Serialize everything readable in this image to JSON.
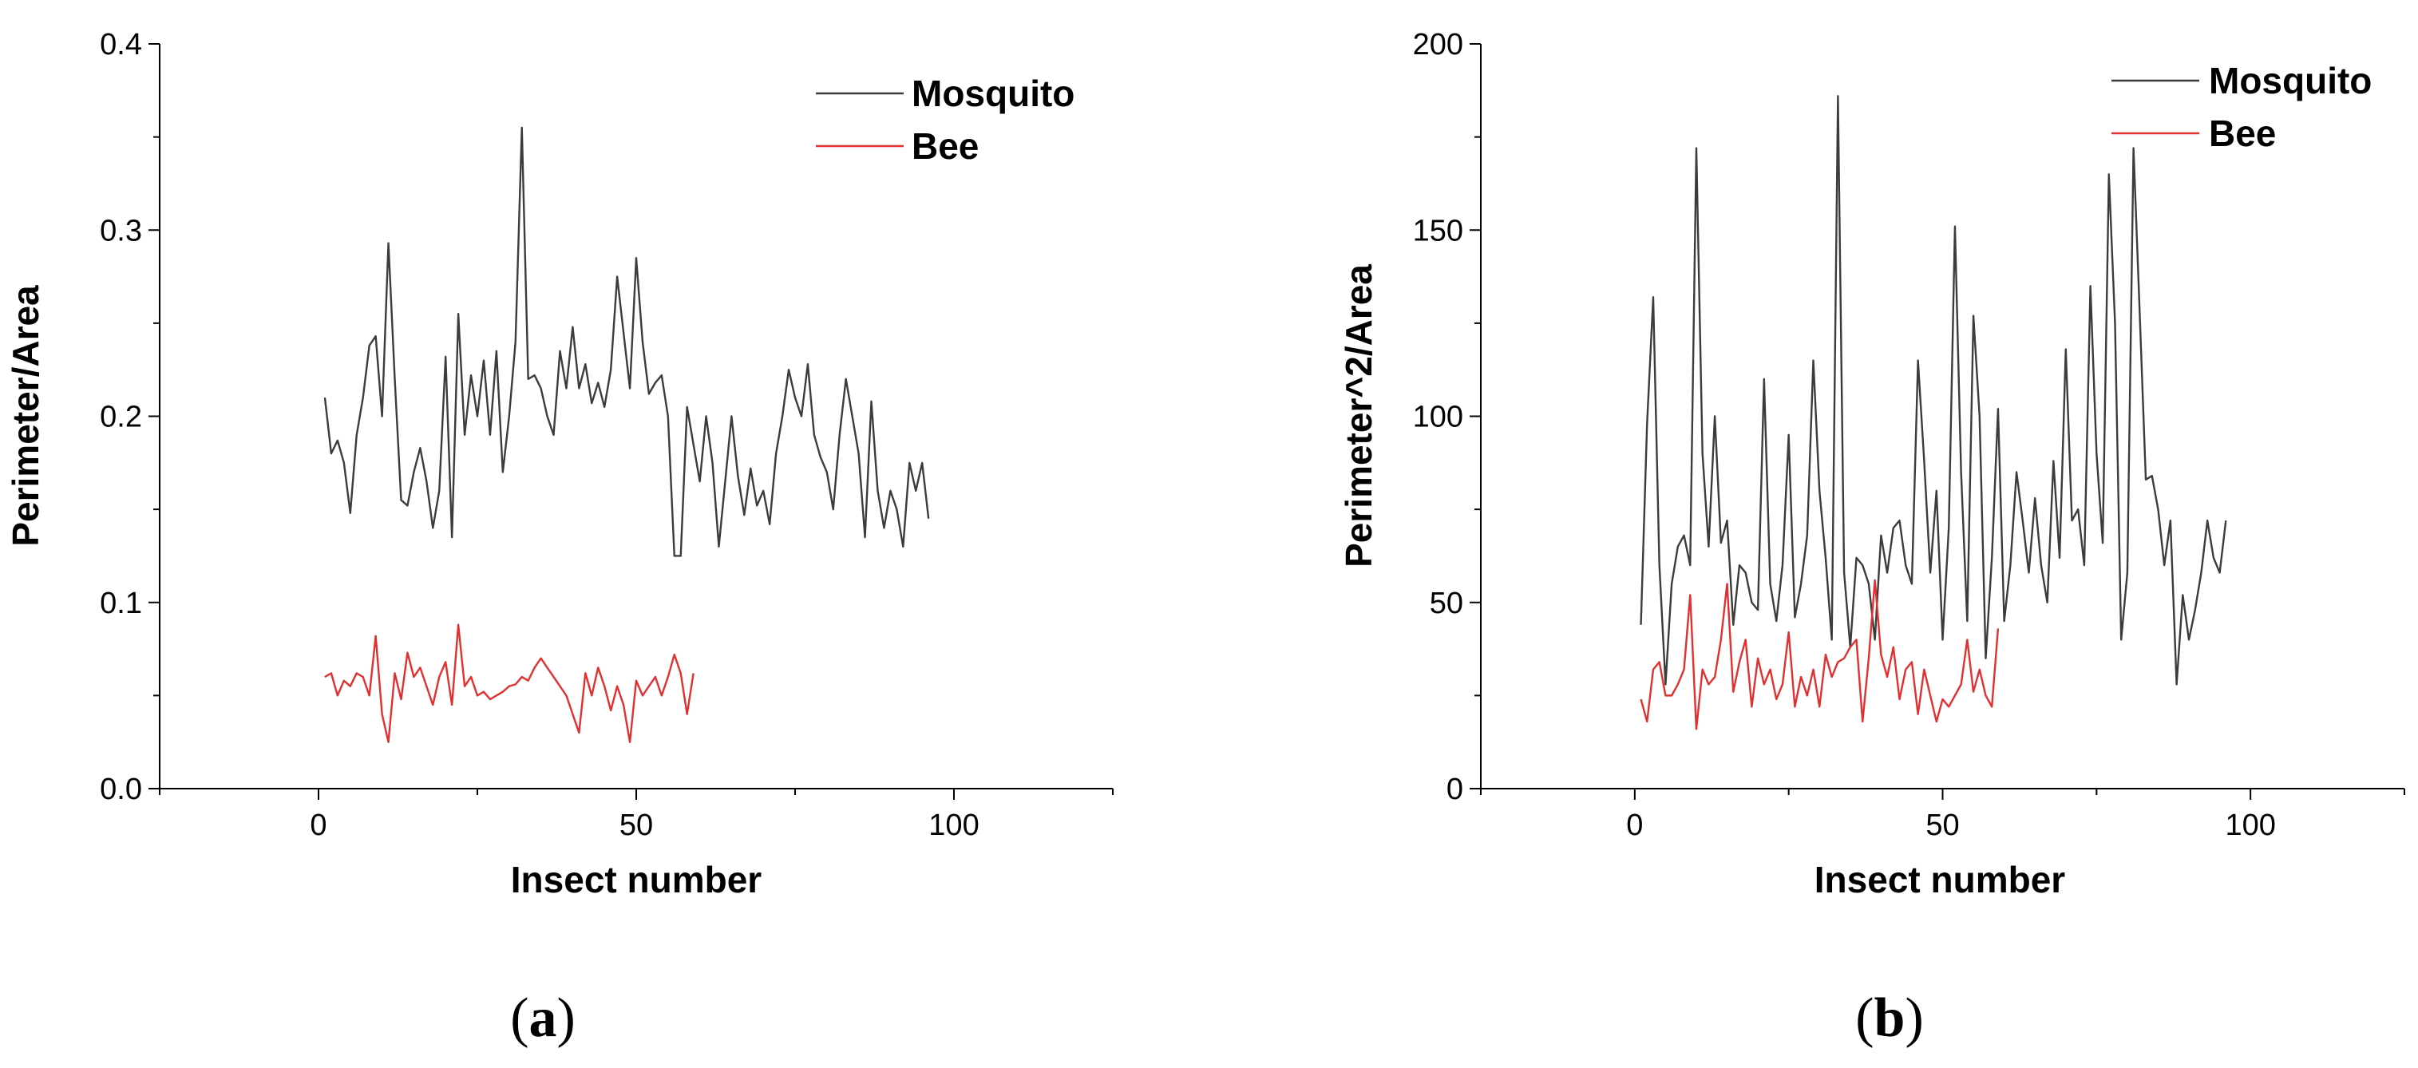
{
  "colors": {
    "mosquito": "#3c3c3c",
    "bee": "#e03030"
  },
  "chart_data": [
    {
      "type": "line",
      "panel_label": "(a)",
      "panel_letter": "a",
      "xlabel": "Insect number",
      "ylabel": "Perimeter/Area",
      "xlim": [
        -25,
        125
      ],
      "ylim": [
        0.0,
        0.4
      ],
      "xticks": [
        0,
        50,
        100
      ],
      "yticks": [
        0.0,
        0.1,
        0.2,
        0.3,
        0.4
      ],
      "ytick_labels": [
        "0.0",
        "0.1",
        "0.2",
        "0.3",
        "0.4"
      ],
      "legend_position": "top-right",
      "series": [
        {
          "name": "Mosquito",
          "color": "#3c3c3c",
          "x_start": 1,
          "values": [
            0.21,
            0.18,
            0.187,
            0.175,
            0.148,
            0.19,
            0.21,
            0.238,
            0.243,
            0.2,
            0.293,
            0.22,
            0.155,
            0.152,
            0.17,
            0.183,
            0.165,
            0.14,
            0.16,
            0.232,
            0.135,
            0.255,
            0.19,
            0.222,
            0.2,
            0.23,
            0.19,
            0.235,
            0.17,
            0.2,
            0.24,
            0.355,
            0.22,
            0.222,
            0.215,
            0.2,
            0.19,
            0.235,
            0.215,
            0.248,
            0.215,
            0.228,
            0.207,
            0.218,
            0.205,
            0.225,
            0.275,
            0.245,
            0.215,
            0.285,
            0.24,
            0.212,
            0.218,
            0.222,
            0.2,
            0.125,
            0.125,
            0.205,
            0.185,
            0.165,
            0.2,
            0.175,
            0.13,
            0.165,
            0.2,
            0.168,
            0.147,
            0.172,
            0.152,
            0.16,
            0.142,
            0.18,
            0.2,
            0.225,
            0.21,
            0.2,
            0.228,
            0.19,
            0.178,
            0.17,
            0.15,
            0.19,
            0.22,
            0.2,
            0.18,
            0.135,
            0.208,
            0.16,
            0.14,
            0.16,
            0.15,
            0.13,
            0.175,
            0.16,
            0.175,
            0.145
          ],
          "x_end": 96
        },
        {
          "name": "Bee",
          "color": "#e03030",
          "x_start": 1,
          "values": [
            0.06,
            0.062,
            0.05,
            0.058,
            0.055,
            0.062,
            0.06,
            0.05,
            0.082,
            0.04,
            0.025,
            0.062,
            0.048,
            0.073,
            0.06,
            0.065,
            0.055,
            0.045,
            0.06,
            0.068,
            0.045,
            0.088,
            0.055,
            0.06,
            0.05,
            0.052,
            0.048,
            0.05,
            0.052,
            0.055,
            0.056,
            0.06,
            0.058,
            0.065,
            0.07,
            0.065,
            0.06,
            0.055,
            0.05,
            0.04,
            0.03,
            0.062,
            0.05,
            0.065,
            0.055,
            0.042,
            0.055,
            0.045,
            0.025,
            0.058,
            0.05,
            0.055,
            0.06,
            0.05,
            0.06,
            0.072,
            0.062,
            0.04,
            0.062
          ],
          "x_end": 59
        }
      ]
    },
    {
      "type": "line",
      "panel_label": "(b)",
      "panel_letter": "b",
      "xlabel": "Insect number",
      "ylabel": "Perimeter^2/Area",
      "xlim": [
        -25,
        125
      ],
      "ylim": [
        0,
        200
      ],
      "xticks": [
        0,
        50,
        100
      ],
      "yticks": [
        0,
        50,
        100,
        150,
        200
      ],
      "ytick_labels": [
        "0",
        "50",
        "100",
        "150",
        "200"
      ],
      "legend_position": "top-right",
      "series": [
        {
          "name": "Mosquito",
          "color": "#3c3c3c",
          "x_start": 1,
          "values": [
            44,
            98,
            132,
            60,
            28,
            55,
            65,
            68,
            60,
            172,
            90,
            65,
            100,
            66,
            72,
            44,
            60,
            58,
            50,
            48,
            110,
            55,
            45,
            60,
            95,
            46,
            55,
            68,
            115,
            80,
            62,
            40,
            186,
            58,
            38,
            62,
            60,
            55,
            40,
            68,
            58,
            70,
            72,
            60,
            55,
            115,
            88,
            58,
            80,
            40,
            70,
            151,
            85,
            45,
            127,
            100,
            35,
            62,
            102,
            45,
            60,
            85,
            72,
            58,
            78,
            60,
            50,
            88,
            62,
            118,
            72,
            75,
            60,
            135,
            90,
            66,
            165,
            125,
            40,
            58,
            172,
            128,
            83,
            84,
            75,
            60,
            72,
            28,
            52,
            40,
            48,
            58,
            72,
            62,
            58,
            72
          ],
          "x_end": 96
        },
        {
          "name": "Bee",
          "color": "#e03030",
          "x_start": 1,
          "values": [
            24,
            18,
            32,
            34,
            25,
            25,
            28,
            32,
            52,
            16,
            32,
            28,
            30,
            40,
            55,
            26,
            34,
            40,
            22,
            35,
            28,
            32,
            24,
            28,
            42,
            22,
            30,
            25,
            32,
            22,
            36,
            30,
            34,
            35,
            38,
            40,
            18,
            35,
            56,
            36,
            30,
            38,
            24,
            32,
            34,
            20,
            32,
            25,
            18,
            24,
            22,
            25,
            28,
            40,
            26,
            32,
            25,
            22,
            43
          ],
          "x_end": 59
        }
      ]
    }
  ]
}
